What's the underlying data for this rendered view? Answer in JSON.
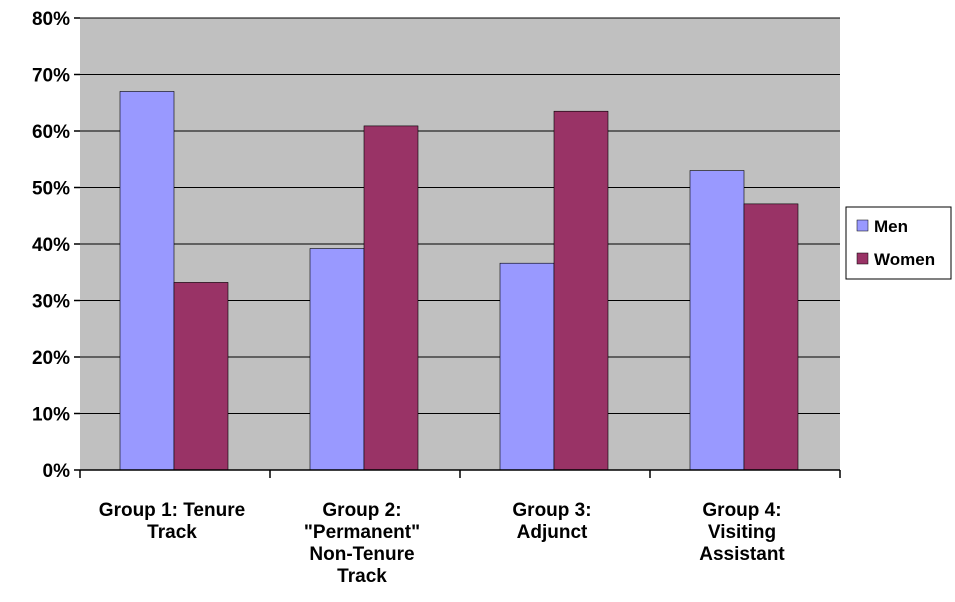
{
  "chart_data": {
    "type": "bar",
    "categories": [
      [
        "Group 1: Tenure",
        "Track"
      ],
      [
        "Group 2:",
        "\"Permanent\"",
        "Non-Tenure",
        "Track"
      ],
      [
        "Group 3:",
        "Adjunct"
      ],
      [
        "Group 4:",
        "Visiting",
        "Assistant"
      ]
    ],
    "series": [
      {
        "name": "Men",
        "values": [
          67,
          39.2,
          36.6,
          53
        ],
        "color": "#9999ff"
      },
      {
        "name": "Women",
        "values": [
          33.2,
          60.9,
          63.5,
          47.1
        ],
        "color": "#993366"
      }
    ],
    "ylim": [
      0,
      80
    ],
    "yticks": [
      "0%",
      "10%",
      "20%",
      "30%",
      "40%",
      "50%",
      "60%",
      "70%",
      "80%"
    ],
    "plot_background": "#c0c0c0",
    "grid": true,
    "legend_position": "right"
  }
}
